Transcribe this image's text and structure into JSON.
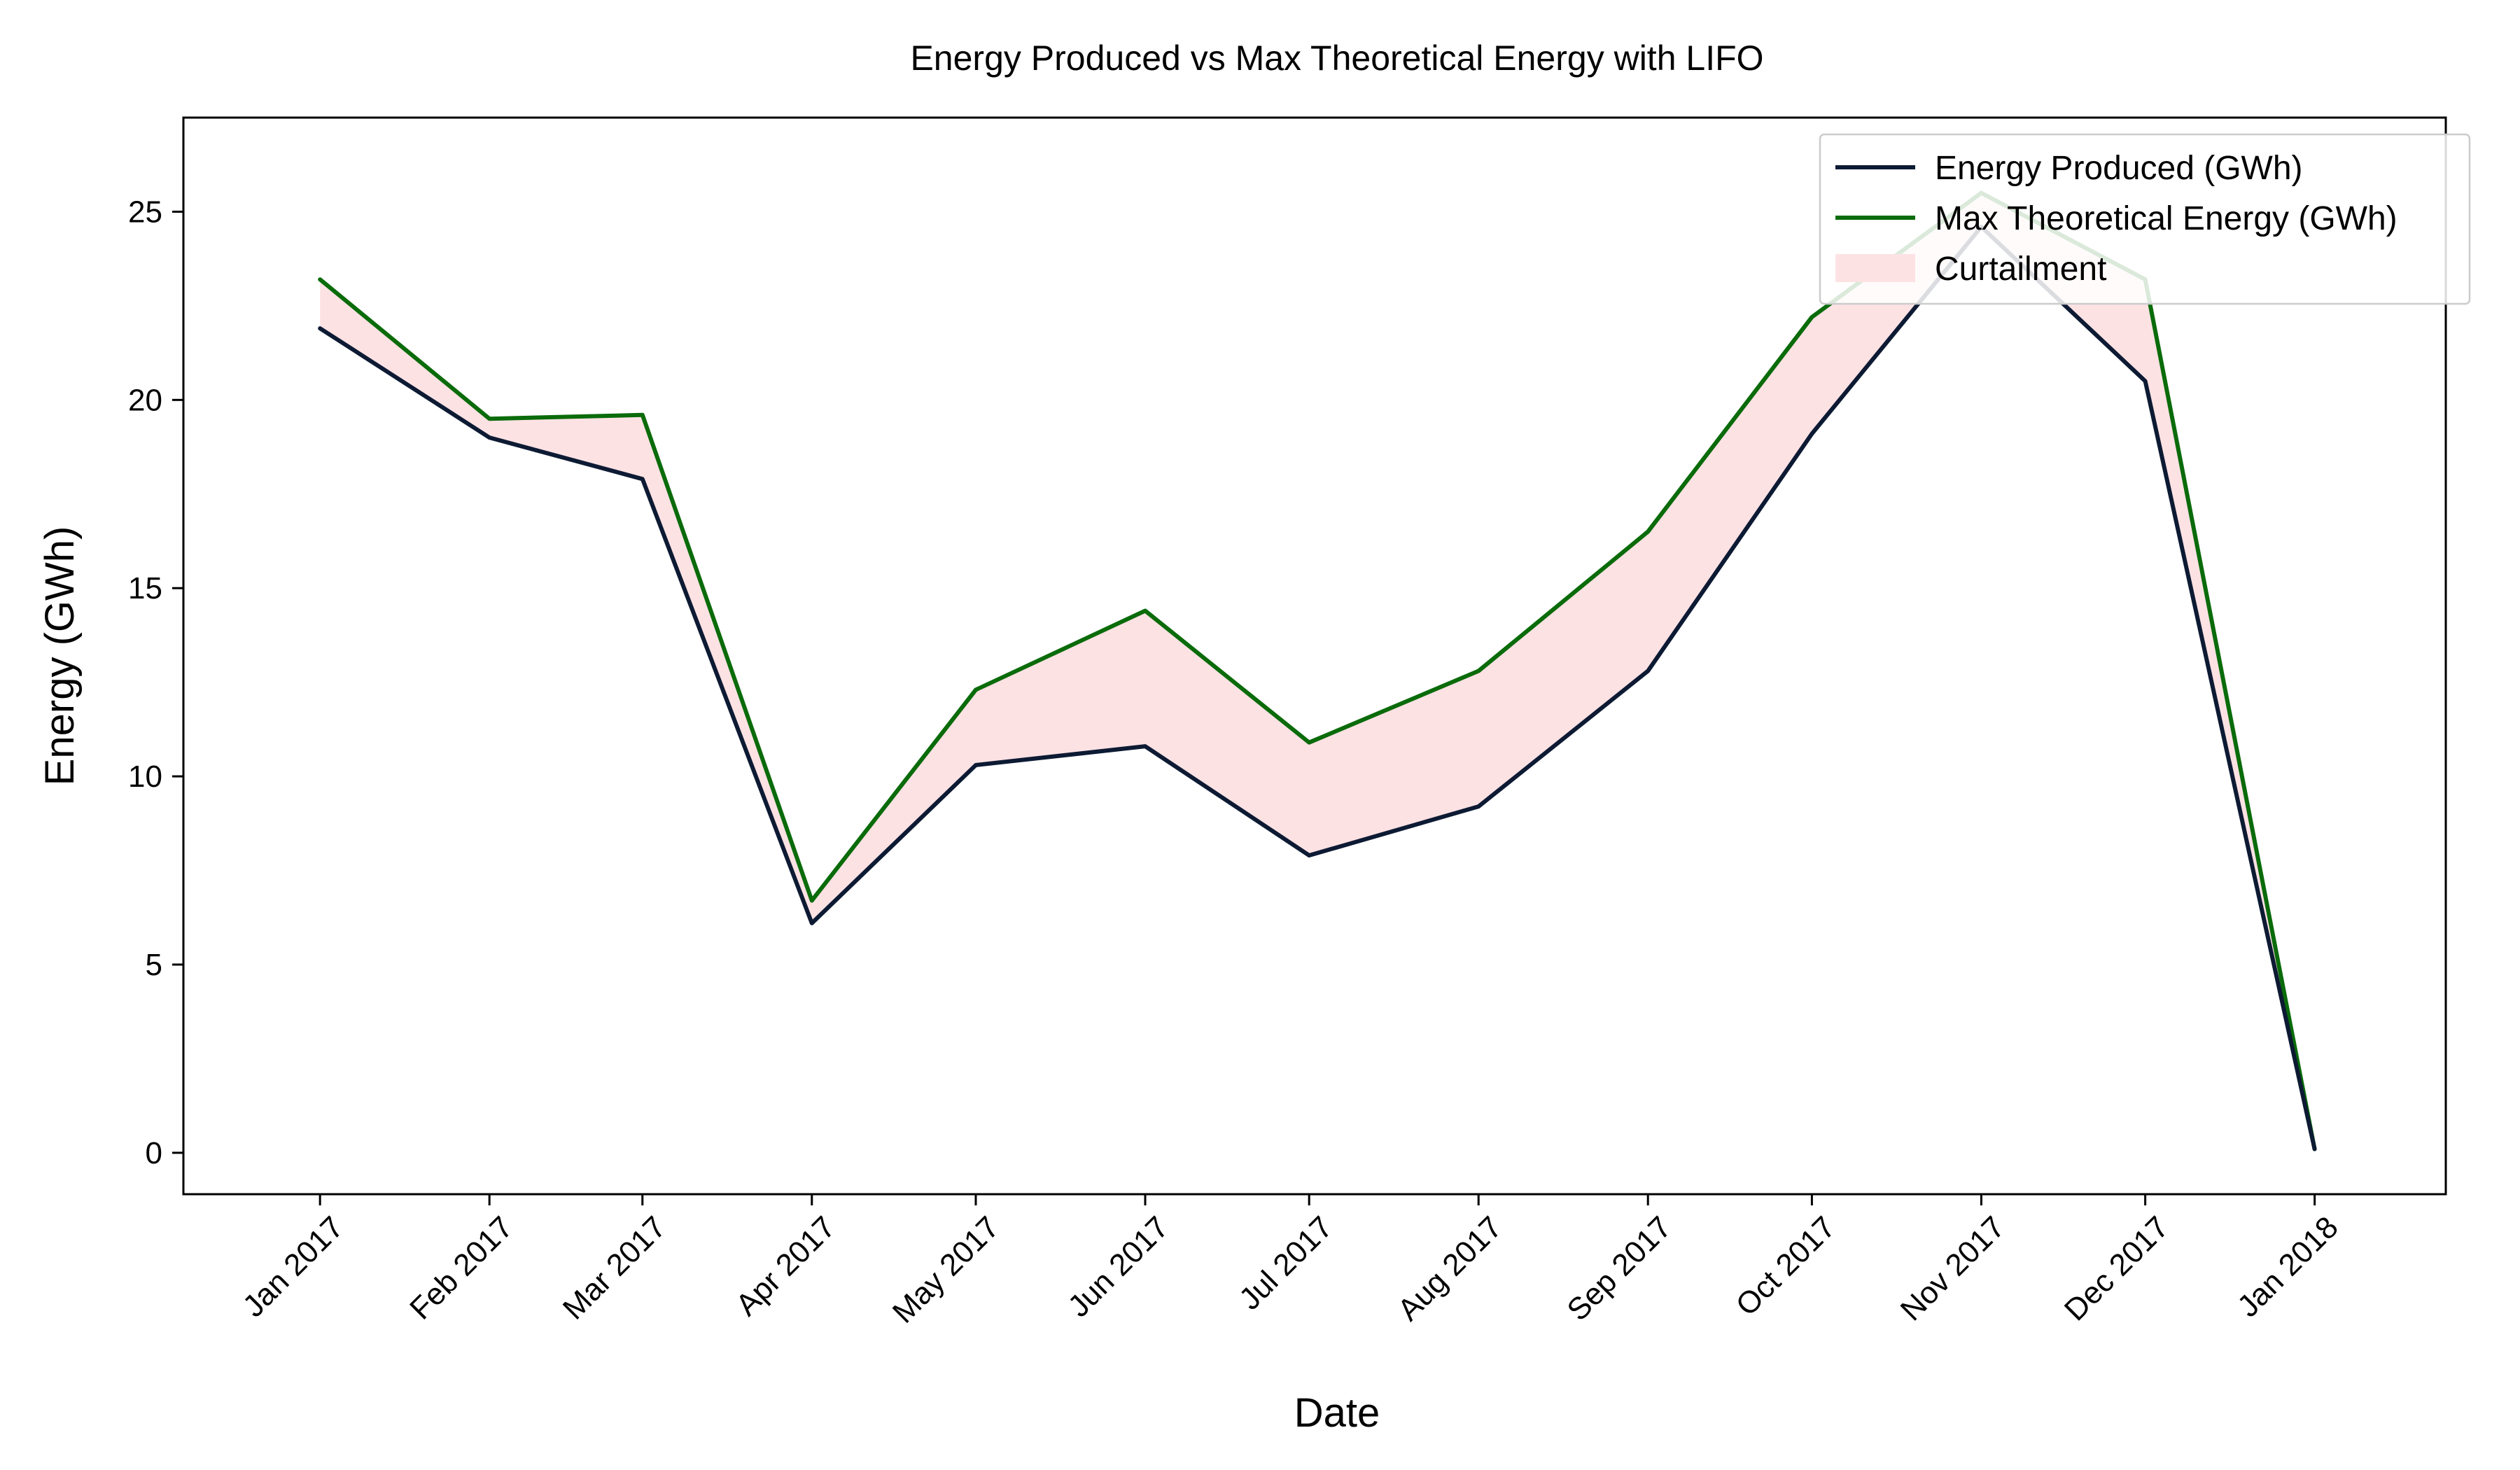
{
  "chart_data": {
    "type": "line",
    "title": "Energy Produced vs Max Theoretical Energy with LIFO",
    "xlabel": "Date",
    "ylabel": "Energy (GWh)",
    "categories": [
      "Jan 2017",
      "Feb 2017",
      "Mar 2017",
      "Apr 2017",
      "May 2017",
      "Jun 2017",
      "Jul 2017",
      "Aug 2017",
      "Sep 2017",
      "Oct 2017",
      "Nov 2017",
      "Dec 2017",
      "Jan 2018"
    ],
    "x": [
      "2017-01-01",
      "2017-02-01",
      "2017-03-01",
      "2017-04-01",
      "2017-05-01",
      "2017-06-01",
      "2017-07-01",
      "2017-08-01",
      "2017-09-01",
      "2017-10-01",
      "2017-11-01",
      "2017-12-01",
      "2018-01-01"
    ],
    "series": [
      {
        "name": "Energy Produced (GWh)",
        "color": "#0d1a33",
        "values": [
          21.9,
          19.0,
          17.9,
          6.1,
          10.3,
          10.8,
          7.9,
          9.2,
          12.8,
          19.1,
          24.6,
          20.5,
          0.1
        ]
      },
      {
        "name": "Max Theoretical Energy (GWh)",
        "color": "#0a6b0a",
        "values": [
          23.2,
          19.5,
          19.6,
          6.7,
          12.3,
          14.4,
          10.9,
          12.8,
          16.5,
          22.2,
          25.5,
          23.2,
          0.1
        ]
      }
    ],
    "fill": {
      "name": "Curtailment",
      "color": "#fde2e4",
      "between": [
        "Energy Produced (GWh)",
        "Max Theoretical Energy (GWh)"
      ]
    },
    "yticks": [
      "0",
      "5",
      "10",
      "15",
      "20",
      "25"
    ],
    "ylim": [
      -1.1,
      27.5
    ],
    "xlim": [
      "2016-12-07",
      "2018-01-25"
    ],
    "grid": false,
    "legend": "top-right"
  }
}
